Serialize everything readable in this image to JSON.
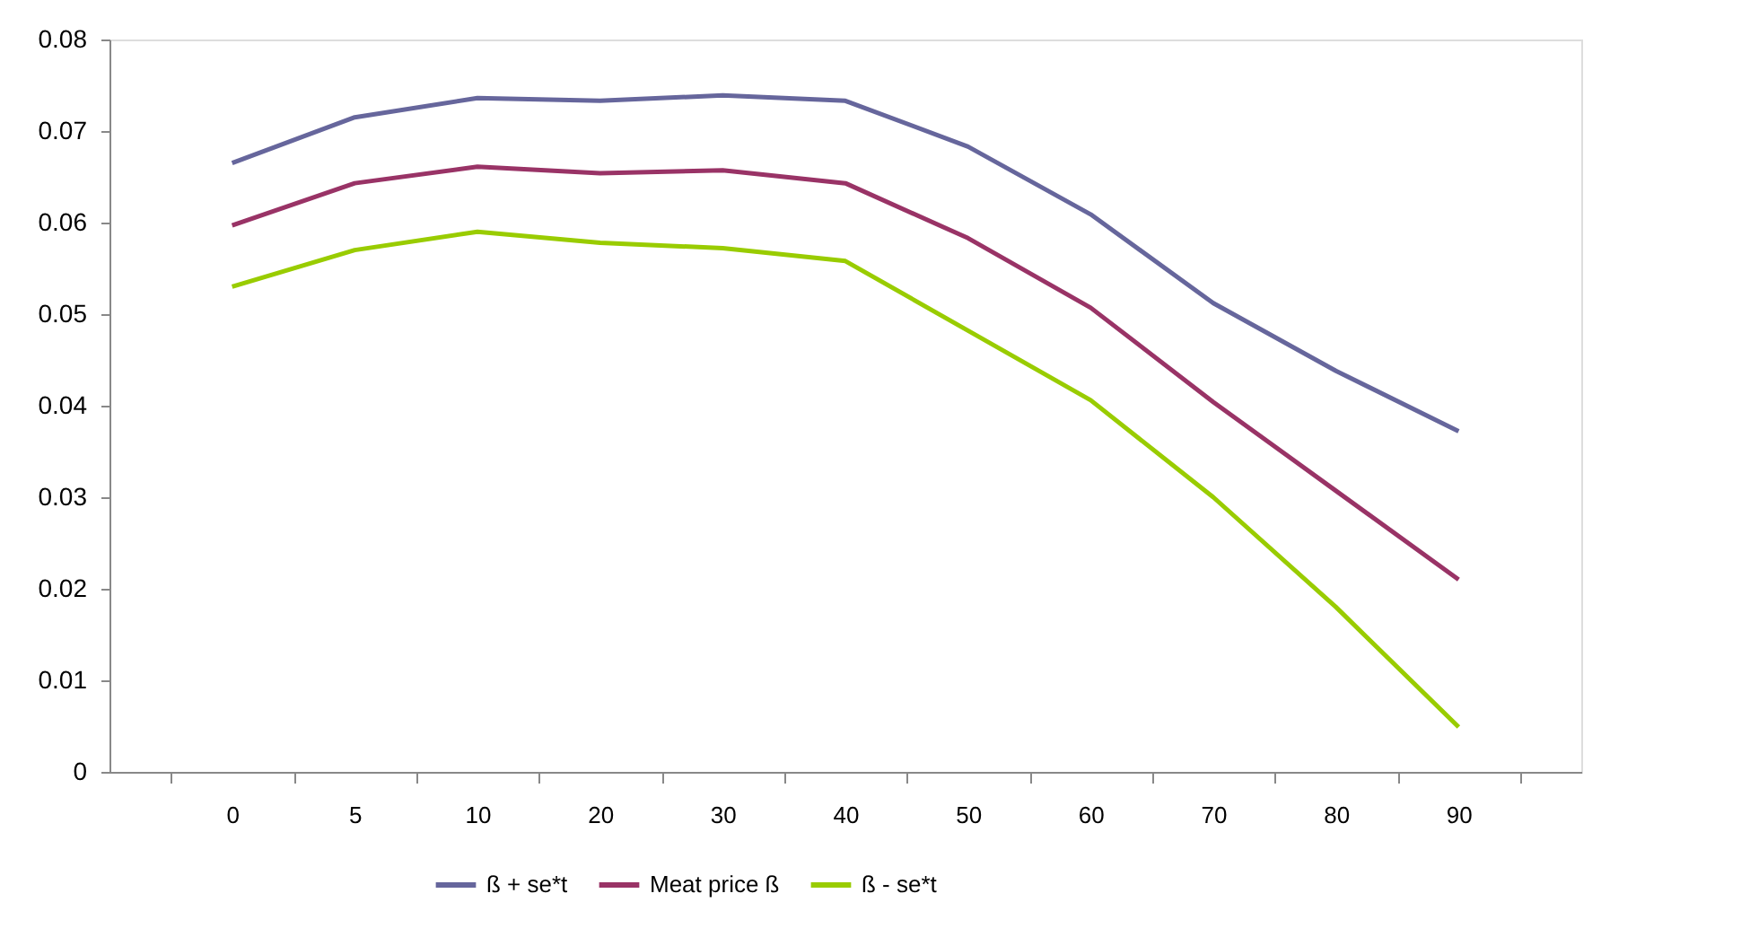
{
  "chart_data": {
    "type": "line",
    "categories": [
      "0",
      "5",
      "10",
      "20",
      "30",
      "40",
      "50",
      "60",
      "70",
      "80",
      "90"
    ],
    "series": [
      {
        "name": "ß + se*t",
        "color": "#66669c",
        "values": [
          0.0665,
          0.0715,
          0.0736,
          0.0733,
          0.0739,
          0.0733,
          0.0683,
          0.0609,
          0.0512,
          0.0438,
          0.0372
        ]
      },
      {
        "name": "Meat price ß",
        "color": "#993366",
        "values": [
          0.0597,
          0.0643,
          0.0661,
          0.0654,
          0.0657,
          0.0643,
          0.0583,
          0.0507,
          0.0404,
          0.0307,
          0.021
        ]
      },
      {
        "name": "ß - se*t",
        "color": "#99cc00",
        "values": [
          0.053,
          0.057,
          0.059,
          0.0578,
          0.0572,
          0.0558,
          0.0482,
          0.0406,
          0.03,
          0.018,
          0.0049
        ]
      }
    ],
    "ylim": [
      0,
      0.08
    ],
    "yticks": [
      0,
      0.01,
      0.02,
      0.03,
      0.04,
      0.05,
      0.06,
      0.07,
      0.08
    ],
    "grid": false,
    "legend": "bottom",
    "marker": "none",
    "line_style": "solid"
  }
}
